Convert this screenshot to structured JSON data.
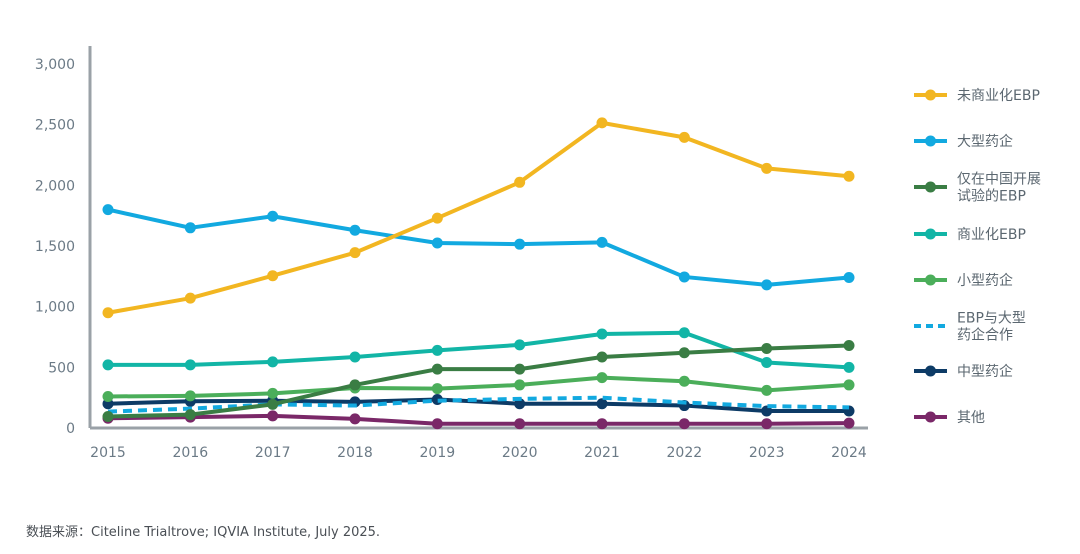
{
  "source_note": "数据来源：Citeline Trialtrove; IQVIA Institute, July 2025.",
  "chart_data": {
    "type": "line",
    "x": [
      2015,
      2016,
      2017,
      2018,
      2019,
      2020,
      2021,
      2022,
      2023,
      2024
    ],
    "ylim": [
      0,
      3000
    ],
    "yticks": [
      0,
      500,
      1000,
      1500,
      2000,
      2500,
      3000
    ],
    "ytick_labels": [
      "0",
      "500",
      "1,000",
      "1,500",
      "2,000",
      "2,500",
      "3,000"
    ],
    "xtick_labels": [
      "2015",
      "2016",
      "2017",
      "2018",
      "2019",
      "2020",
      "2021",
      "2022",
      "2023",
      "2024"
    ],
    "grid": false,
    "legend_position": "right",
    "series": [
      {
        "name": "未商业化EBP",
        "name_lines": [
          "未商业化EBP"
        ],
        "color": "#F2B621",
        "dashed": false,
        "values": [
          950,
          1070,
          1255,
          1445,
          1730,
          2025,
          2515,
          2395,
          2140,
          2075
        ]
      },
      {
        "name": "大型药企",
        "name_lines": [
          "大型药企"
        ],
        "color": "#12A9E0",
        "dashed": false,
        "values": [
          1800,
          1650,
          1745,
          1630,
          1525,
          1515,
          1530,
          1245,
          1180,
          1240
        ]
      },
      {
        "name": "仅在中国开展试验的EBP",
        "name_lines": [
          "仅在中国开展",
          "试验的EBP"
        ],
        "color": "#3A7D44",
        "dashed": false,
        "values": [
          95,
          110,
          195,
          355,
          485,
          485,
          585,
          620,
          655,
          680
        ]
      },
      {
        "name": "商业化EBP",
        "name_lines": [
          "商业化EBP"
        ],
        "color": "#12B5A6",
        "dashed": false,
        "values": [
          520,
          520,
          545,
          585,
          640,
          685,
          775,
          785,
          540,
          500
        ]
      },
      {
        "name": "小型药企",
        "name_lines": [
          "小型药企"
        ],
        "color": "#4BAE5A",
        "dashed": false,
        "values": [
          260,
          265,
          285,
          330,
          325,
          355,
          415,
          385,
          310,
          355
        ]
      },
      {
        "name": "EBP与大型药企合作",
        "name_lines": [
          "EBP与大型",
          "药企合作"
        ],
        "color": "#12A9E0",
        "dashed": true,
        "values": [
          135,
          160,
          195,
          185,
          225,
          240,
          250,
          210,
          180,
          170
        ]
      },
      {
        "name": "中型药企",
        "name_lines": [
          "中型药企"
        ],
        "color": "#0D3B66",
        "dashed": false,
        "values": [
          200,
          220,
          225,
          215,
          235,
          200,
          200,
          185,
          140,
          140
        ]
      },
      {
        "name": "其他",
        "name_lines": [
          "其他"
        ],
        "color": "#7A2868",
        "dashed": false,
        "values": [
          80,
          90,
          100,
          75,
          35,
          35,
          35,
          35,
          35,
          40
        ]
      }
    ]
  }
}
